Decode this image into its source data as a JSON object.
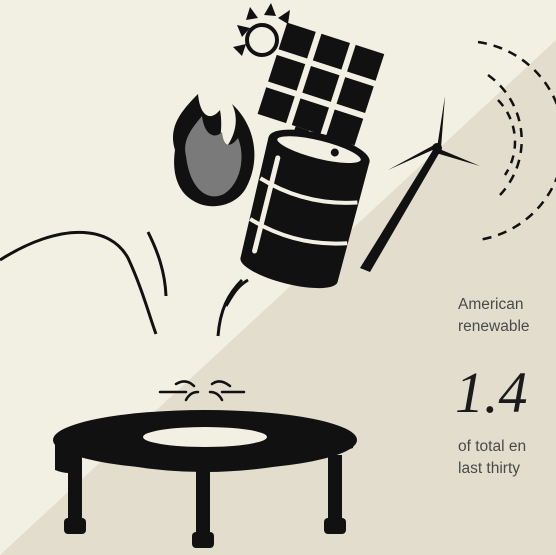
{
  "colors": {
    "background_light": "#f2efe3",
    "background_shade": "#e2ddcd",
    "ink": "#111111",
    "flame_grey": "#6f6f6f",
    "text": "#4a4a4a"
  },
  "icons": [
    "sun-icon",
    "solar-panel-icon",
    "wind-turbine-icon",
    "flame-icon",
    "oil-barrel-icon",
    "trampoline-icon"
  ],
  "text": {
    "intro_line1": "American",
    "intro_line2": "renewable",
    "stat_value": "1.4",
    "outro_line1": "of total en",
    "outro_line2": "last thirty"
  }
}
